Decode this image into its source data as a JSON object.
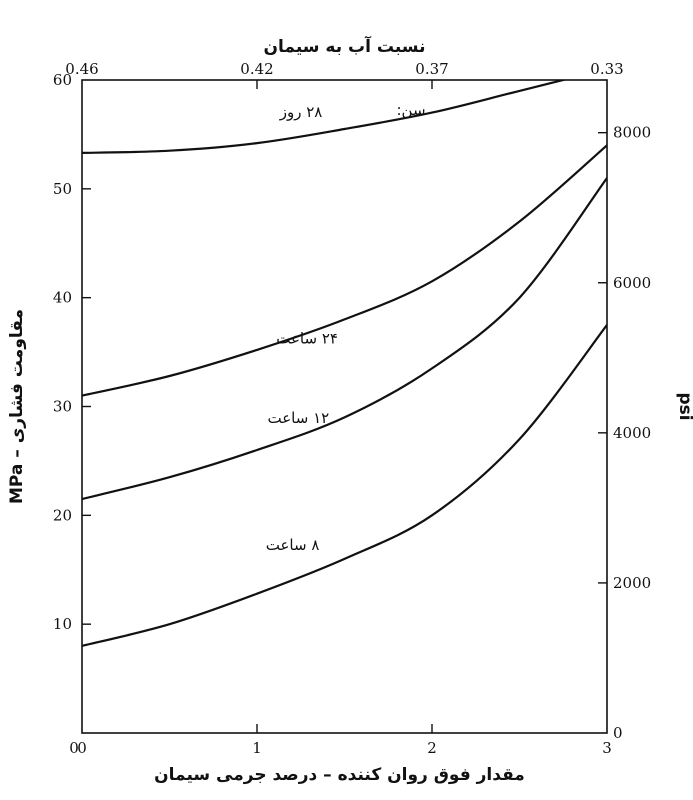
{
  "chart_data": {
    "type": "line",
    "title": "",
    "top_axis_label": "نسبت آب به سیمان",
    "top_ticks": [
      {
        "x": 0,
        "label": "0.46"
      },
      {
        "x": 1,
        "label": "0.42"
      },
      {
        "x": 2,
        "label": "0.37"
      },
      {
        "x": 3,
        "label": "0.33"
      }
    ],
    "xlabel": "مقدار فوق روان کننده – درصد جرمی سیمان",
    "ylabel": "مقاومت فشاری – MPa",
    "ylabel_right": "psi",
    "xlim": [
      0,
      3
    ],
    "ylim": [
      0,
      60
    ],
    "x_ticks": [
      0,
      1,
      2,
      3
    ],
    "y_ticks": [
      10,
      20,
      30,
      40,
      50,
      60
    ],
    "right_ticks": [
      0,
      2000,
      4000,
      6000,
      8000
    ],
    "right_lim": [
      0,
      8702
    ],
    "age_label": "سن:",
    "grid": false,
    "legend": "none",
    "series": [
      {
        "name": "۲۸ روز",
        "x": [
          0,
          0.5,
          1,
          1.5,
          2,
          2.5,
          3
        ],
        "y": [
          53.3,
          53.5,
          54.2,
          55.5,
          57.0,
          59.0,
          61.0
        ]
      },
      {
        "name": "۲۴ ساعت",
        "x": [
          0,
          0.5,
          1,
          1.5,
          2,
          2.5,
          3
        ],
        "y": [
          31.0,
          32.8,
          35.2,
          38.0,
          41.5,
          47.0,
          54.0
        ]
      },
      {
        "name": "۱۲ ساعت",
        "x": [
          0,
          0.5,
          1,
          1.5,
          2,
          2.5,
          3
        ],
        "y": [
          21.5,
          23.5,
          26.0,
          29.0,
          33.5,
          40.0,
          51.0
        ]
      },
      {
        "name": "۸ ساعت",
        "x": [
          0,
          0.5,
          1,
          1.5,
          2,
          2.5,
          3
        ],
        "y": [
          8.0,
          10.0,
          12.8,
          16.0,
          20.0,
          27.0,
          37.5
        ]
      }
    ]
  }
}
